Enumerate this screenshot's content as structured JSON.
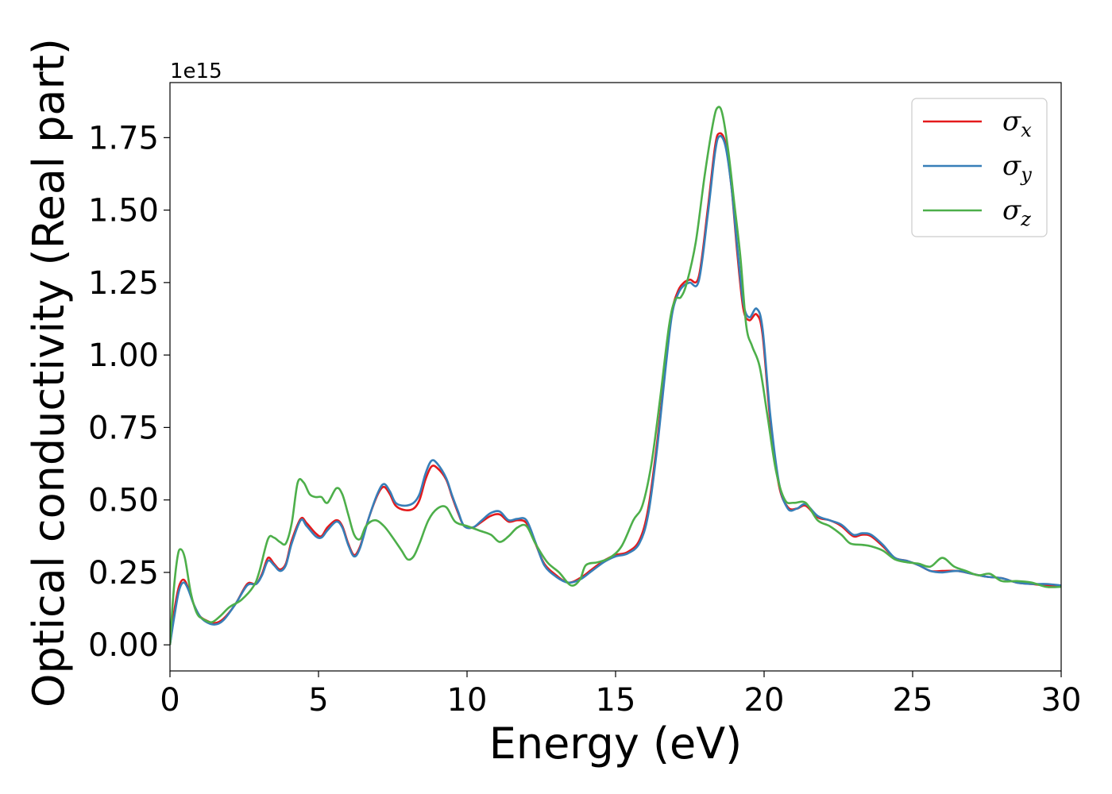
{
  "chart_data": {
    "type": "line",
    "xlabel": "Energy (eV)",
    "ylabel": "Optical conductivity (Real part)",
    "y_exponent_label": "1e15",
    "xlim": [
      0,
      30
    ],
    "ylim": [
      -0.09,
      1.94
    ],
    "x_ticks": [
      0,
      5,
      10,
      15,
      20,
      25,
      30
    ],
    "x_tick_labels": [
      "0",
      "5",
      "10",
      "15",
      "20",
      "25",
      "30"
    ],
    "y_ticks": [
      0,
      0.25,
      0.5,
      0.75,
      1.0,
      1.25,
      1.5,
      1.75
    ],
    "y_tick_labels": [
      "0.00",
      "0.25",
      "0.50",
      "0.75",
      "1.00",
      "1.25",
      "1.50",
      "1.75"
    ],
    "grid": false,
    "legend_position": "top-right",
    "series": [
      {
        "name": "σx",
        "symbol": "σ",
        "subscript": "x",
        "color": "#e41a1c",
        "points": [
          [
            0,
            0
          ],
          [
            0.15,
            0.12
          ],
          [
            0.3,
            0.2
          ],
          [
            0.45,
            0.225
          ],
          [
            0.6,
            0.2
          ],
          [
            0.8,
            0.14
          ],
          [
            1.0,
            0.1
          ],
          [
            1.2,
            0.085
          ],
          [
            1.5,
            0.075
          ],
          [
            1.8,
            0.09
          ],
          [
            2.2,
            0.14
          ],
          [
            2.6,
            0.21
          ],
          [
            2.9,
            0.21
          ],
          [
            3.1,
            0.245
          ],
          [
            3.3,
            0.3
          ],
          [
            3.5,
            0.28
          ],
          [
            3.7,
            0.26
          ],
          [
            3.9,
            0.28
          ],
          [
            4.1,
            0.36
          ],
          [
            4.4,
            0.435
          ],
          [
            4.6,
            0.42
          ],
          [
            4.9,
            0.385
          ],
          [
            5.1,
            0.375
          ],
          [
            5.3,
            0.405
          ],
          [
            5.6,
            0.43
          ],
          [
            5.8,
            0.41
          ],
          [
            6.0,
            0.35
          ],
          [
            6.2,
            0.31
          ],
          [
            6.4,
            0.34
          ],
          [
            6.7,
            0.44
          ],
          [
            7.0,
            0.52
          ],
          [
            7.2,
            0.545
          ],
          [
            7.4,
            0.52
          ],
          [
            7.6,
            0.48
          ],
          [
            7.9,
            0.465
          ],
          [
            8.2,
            0.47
          ],
          [
            8.4,
            0.5
          ],
          [
            8.6,
            0.57
          ],
          [
            8.8,
            0.615
          ],
          [
            9.0,
            0.61
          ],
          [
            9.3,
            0.57
          ],
          [
            9.5,
            0.51
          ],
          [
            9.7,
            0.455
          ],
          [
            9.9,
            0.41
          ],
          [
            10.2,
            0.405
          ],
          [
            10.5,
            0.425
          ],
          [
            10.8,
            0.445
          ],
          [
            11.1,
            0.45
          ],
          [
            11.4,
            0.425
          ],
          [
            11.7,
            0.43
          ],
          [
            12.0,
            0.42
          ],
          [
            12.3,
            0.35
          ],
          [
            12.6,
            0.28
          ],
          [
            13.0,
            0.24
          ],
          [
            13.4,
            0.215
          ],
          [
            13.8,
            0.23
          ],
          [
            14.2,
            0.26
          ],
          [
            14.6,
            0.29
          ],
          [
            15.0,
            0.31
          ],
          [
            15.4,
            0.32
          ],
          [
            15.8,
            0.36
          ],
          [
            16.1,
            0.47
          ],
          [
            16.4,
            0.7
          ],
          [
            16.7,
            0.98
          ],
          [
            16.9,
            1.15
          ],
          [
            17.1,
            1.22
          ],
          [
            17.3,
            1.25
          ],
          [
            17.5,
            1.26
          ],
          [
            17.8,
            1.27
          ],
          [
            18.1,
            1.5
          ],
          [
            18.35,
            1.72
          ],
          [
            18.5,
            1.765
          ],
          [
            18.7,
            1.73
          ],
          [
            18.9,
            1.58
          ],
          [
            19.1,
            1.35
          ],
          [
            19.3,
            1.16
          ],
          [
            19.5,
            1.12
          ],
          [
            19.75,
            1.14
          ],
          [
            19.95,
            1.07
          ],
          [
            20.2,
            0.78
          ],
          [
            20.5,
            0.55
          ],
          [
            20.8,
            0.475
          ],
          [
            21.1,
            0.47
          ],
          [
            21.4,
            0.48
          ],
          [
            21.8,
            0.44
          ],
          [
            22.2,
            0.43
          ],
          [
            22.6,
            0.41
          ],
          [
            23.0,
            0.375
          ],
          [
            23.3,
            0.38
          ],
          [
            23.6,
            0.375
          ],
          [
            24.0,
            0.34
          ],
          [
            24.4,
            0.3
          ],
          [
            24.8,
            0.29
          ],
          [
            25.2,
            0.275
          ],
          [
            25.6,
            0.255
          ],
          [
            26.0,
            0.255
          ],
          [
            26.5,
            0.255
          ],
          [
            27.0,
            0.245
          ],
          [
            27.5,
            0.235
          ],
          [
            28.0,
            0.23
          ],
          [
            28.5,
            0.215
          ],
          [
            29.0,
            0.21
          ],
          [
            29.5,
            0.205
          ],
          [
            30.0,
            0.205
          ]
        ]
      },
      {
        "name": "σy",
        "symbol": "σ",
        "subscript": "y",
        "color": "#377eb8",
        "points": [
          [
            0,
            0
          ],
          [
            0.15,
            0.1
          ],
          [
            0.3,
            0.185
          ],
          [
            0.45,
            0.215
          ],
          [
            0.6,
            0.195
          ],
          [
            0.8,
            0.14
          ],
          [
            1.0,
            0.1
          ],
          [
            1.2,
            0.08
          ],
          [
            1.5,
            0.07
          ],
          [
            1.8,
            0.085
          ],
          [
            2.2,
            0.14
          ],
          [
            2.6,
            0.205
          ],
          [
            2.9,
            0.21
          ],
          [
            3.1,
            0.24
          ],
          [
            3.3,
            0.29
          ],
          [
            3.5,
            0.275
          ],
          [
            3.7,
            0.255
          ],
          [
            3.9,
            0.275
          ],
          [
            4.1,
            0.35
          ],
          [
            4.4,
            0.43
          ],
          [
            4.6,
            0.41
          ],
          [
            4.9,
            0.375
          ],
          [
            5.1,
            0.37
          ],
          [
            5.3,
            0.395
          ],
          [
            5.6,
            0.425
          ],
          [
            5.8,
            0.405
          ],
          [
            6.0,
            0.345
          ],
          [
            6.2,
            0.305
          ],
          [
            6.4,
            0.335
          ],
          [
            6.7,
            0.44
          ],
          [
            7.0,
            0.525
          ],
          [
            7.2,
            0.555
          ],
          [
            7.4,
            0.53
          ],
          [
            7.6,
            0.49
          ],
          [
            7.9,
            0.48
          ],
          [
            8.2,
            0.49
          ],
          [
            8.4,
            0.52
          ],
          [
            8.6,
            0.59
          ],
          [
            8.8,
            0.635
          ],
          [
            9.0,
            0.625
          ],
          [
            9.3,
            0.575
          ],
          [
            9.5,
            0.515
          ],
          [
            9.7,
            0.46
          ],
          [
            9.9,
            0.41
          ],
          [
            10.2,
            0.405
          ],
          [
            10.5,
            0.43
          ],
          [
            10.8,
            0.455
          ],
          [
            11.1,
            0.46
          ],
          [
            11.4,
            0.43
          ],
          [
            11.7,
            0.435
          ],
          [
            12.0,
            0.43
          ],
          [
            12.3,
            0.355
          ],
          [
            12.6,
            0.275
          ],
          [
            13.0,
            0.235
          ],
          [
            13.4,
            0.215
          ],
          [
            13.8,
            0.225
          ],
          [
            14.2,
            0.255
          ],
          [
            14.6,
            0.285
          ],
          [
            15.0,
            0.305
          ],
          [
            15.4,
            0.315
          ],
          [
            15.8,
            0.35
          ],
          [
            16.1,
            0.45
          ],
          [
            16.4,
            0.68
          ],
          [
            16.7,
            0.97
          ],
          [
            16.9,
            1.14
          ],
          [
            17.1,
            1.21
          ],
          [
            17.3,
            1.24
          ],
          [
            17.5,
            1.25
          ],
          [
            17.8,
            1.255
          ],
          [
            18.1,
            1.48
          ],
          [
            18.35,
            1.7
          ],
          [
            18.5,
            1.755
          ],
          [
            18.7,
            1.72
          ],
          [
            18.9,
            1.58
          ],
          [
            19.1,
            1.37
          ],
          [
            19.3,
            1.18
          ],
          [
            19.5,
            1.13
          ],
          [
            19.75,
            1.16
          ],
          [
            19.95,
            1.09
          ],
          [
            20.2,
            0.8
          ],
          [
            20.5,
            0.56
          ],
          [
            20.8,
            0.47
          ],
          [
            21.1,
            0.47
          ],
          [
            21.4,
            0.485
          ],
          [
            21.8,
            0.445
          ],
          [
            22.2,
            0.43
          ],
          [
            22.6,
            0.415
          ],
          [
            23.0,
            0.38
          ],
          [
            23.3,
            0.385
          ],
          [
            23.6,
            0.38
          ],
          [
            24.0,
            0.345
          ],
          [
            24.4,
            0.3
          ],
          [
            24.8,
            0.29
          ],
          [
            25.2,
            0.275
          ],
          [
            25.6,
            0.255
          ],
          [
            26.0,
            0.25
          ],
          [
            26.5,
            0.255
          ],
          [
            27.0,
            0.245
          ],
          [
            27.5,
            0.235
          ],
          [
            28.0,
            0.23
          ],
          [
            28.5,
            0.215
          ],
          [
            29.0,
            0.21
          ],
          [
            29.5,
            0.21
          ],
          [
            30.0,
            0.205
          ]
        ]
      },
      {
        "name": "σz",
        "symbol": "σ",
        "subscript": "z",
        "color": "#4daf4a",
        "points": [
          [
            0,
            0
          ],
          [
            0.12,
            0.18
          ],
          [
            0.25,
            0.3
          ],
          [
            0.35,
            0.33
          ],
          [
            0.5,
            0.3
          ],
          [
            0.7,
            0.18
          ],
          [
            0.9,
            0.11
          ],
          [
            1.1,
            0.09
          ],
          [
            1.4,
            0.078
          ],
          [
            1.7,
            0.1
          ],
          [
            2.0,
            0.13
          ],
          [
            2.4,
            0.155
          ],
          [
            2.8,
            0.2
          ],
          [
            3.0,
            0.25
          ],
          [
            3.3,
            0.365
          ],
          [
            3.5,
            0.37
          ],
          [
            3.7,
            0.355
          ],
          [
            3.9,
            0.35
          ],
          [
            4.1,
            0.42
          ],
          [
            4.3,
            0.56
          ],
          [
            4.5,
            0.56
          ],
          [
            4.7,
            0.52
          ],
          [
            4.9,
            0.51
          ],
          [
            5.1,
            0.51
          ],
          [
            5.3,
            0.49
          ],
          [
            5.6,
            0.54
          ],
          [
            5.8,
            0.52
          ],
          [
            6.0,
            0.45
          ],
          [
            6.2,
            0.38
          ],
          [
            6.4,
            0.365
          ],
          [
            6.6,
            0.41
          ],
          [
            6.9,
            0.43
          ],
          [
            7.2,
            0.41
          ],
          [
            7.5,
            0.37
          ],
          [
            7.8,
            0.325
          ],
          [
            8.0,
            0.295
          ],
          [
            8.2,
            0.305
          ],
          [
            8.4,
            0.35
          ],
          [
            8.7,
            0.43
          ],
          [
            9.0,
            0.47
          ],
          [
            9.3,
            0.475
          ],
          [
            9.6,
            0.425
          ],
          [
            10.0,
            0.41
          ],
          [
            10.4,
            0.395
          ],
          [
            10.8,
            0.38
          ],
          [
            11.1,
            0.355
          ],
          [
            11.4,
            0.375
          ],
          [
            11.7,
            0.405
          ],
          [
            12.0,
            0.41
          ],
          [
            12.3,
            0.35
          ],
          [
            12.7,
            0.285
          ],
          [
            13.1,
            0.25
          ],
          [
            13.5,
            0.205
          ],
          [
            13.8,
            0.225
          ],
          [
            14.0,
            0.275
          ],
          [
            14.4,
            0.285
          ],
          [
            14.8,
            0.3
          ],
          [
            15.2,
            0.34
          ],
          [
            15.6,
            0.43
          ],
          [
            15.9,
            0.48
          ],
          [
            16.2,
            0.62
          ],
          [
            16.5,
            0.85
          ],
          [
            16.8,
            1.1
          ],
          [
            17.0,
            1.19
          ],
          [
            17.2,
            1.2
          ],
          [
            17.4,
            1.25
          ],
          [
            17.7,
            1.39
          ],
          [
            18.0,
            1.62
          ],
          [
            18.3,
            1.81
          ],
          [
            18.45,
            1.855
          ],
          [
            18.6,
            1.83
          ],
          [
            18.8,
            1.7
          ],
          [
            19.0,
            1.52
          ],
          [
            19.2,
            1.34
          ],
          [
            19.4,
            1.1
          ],
          [
            19.6,
            1.03
          ],
          [
            19.85,
            0.96
          ],
          [
            20.1,
            0.8
          ],
          [
            20.4,
            0.6
          ],
          [
            20.7,
            0.5
          ],
          [
            21.0,
            0.49
          ],
          [
            21.4,
            0.49
          ],
          [
            21.8,
            0.43
          ],
          [
            22.2,
            0.41
          ],
          [
            22.6,
            0.38
          ],
          [
            22.9,
            0.35
          ],
          [
            23.3,
            0.345
          ],
          [
            23.6,
            0.34
          ],
          [
            24.0,
            0.325
          ],
          [
            24.4,
            0.295
          ],
          [
            24.8,
            0.285
          ],
          [
            25.2,
            0.28
          ],
          [
            25.6,
            0.27
          ],
          [
            26.0,
            0.3
          ],
          [
            26.4,
            0.27
          ],
          [
            26.8,
            0.255
          ],
          [
            27.2,
            0.24
          ],
          [
            27.6,
            0.245
          ],
          [
            28.0,
            0.22
          ],
          [
            28.5,
            0.22
          ],
          [
            29.0,
            0.215
          ],
          [
            29.5,
            0.2
          ],
          [
            30.0,
            0.2
          ]
        ]
      }
    ]
  }
}
